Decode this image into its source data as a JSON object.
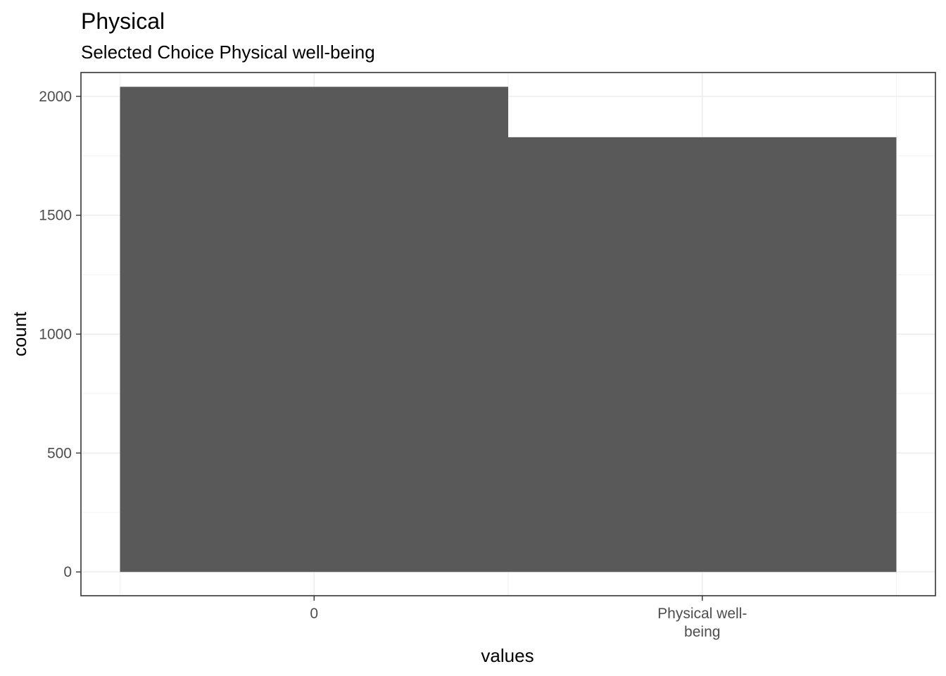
{
  "chart_data": {
    "type": "bar",
    "title": "Physical",
    "subtitle": "Selected Choice Physical well-being",
    "xlabel": "values",
    "ylabel": "count",
    "categories": [
      [
        "0"
      ],
      [
        "Physical well-",
        "being"
      ]
    ],
    "values": [
      2040,
      1828
    ],
    "ylim": [
      -100,
      2100
    ],
    "yticks": [
      0,
      500,
      1000,
      1500,
      2000
    ],
    "ytick_labels": [
      "0",
      "500",
      "1000",
      "1500",
      "2000"
    ],
    "grid": true,
    "legend": "none",
    "bar_color": "#595959",
    "theme": "bw"
  }
}
